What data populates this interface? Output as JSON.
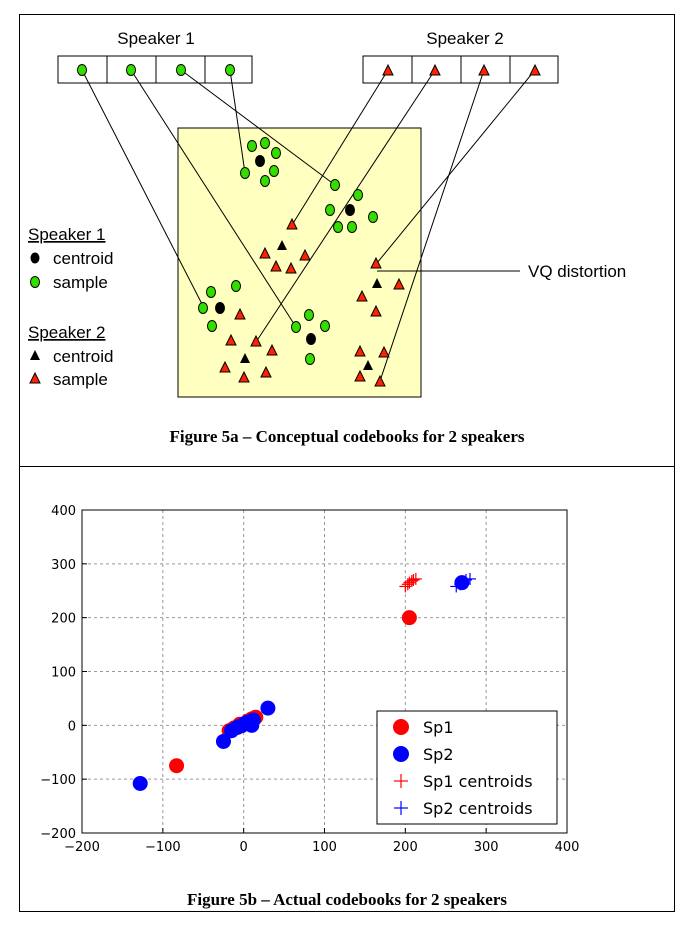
{
  "figure_a": {
    "codebook_1_title": "Speaker 1",
    "codebook_2_title": "Speaker 2",
    "legend": {
      "speaker1_title": "Speaker 1",
      "speaker1_centroid": "centroid",
      "speaker1_sample": "sample",
      "speaker2_title": "Speaker 2",
      "speaker2_centroid": "centroid",
      "speaker2_sample": "sample"
    },
    "annotation": "VQ distortion",
    "caption": "Figure 5a – Conceptual codebooks for 2 speakers",
    "colors": {
      "panel": "#ffffc0",
      "sample1": "#33dd00",
      "sample2": "#ff2200",
      "centroid": "#000000"
    }
  },
  "figure_b": {
    "caption": "Figure 5b – Actual codebooks for 2 speakers"
  },
  "chart_data": {
    "type": "scatter",
    "title": "",
    "xlabel": "",
    "ylabel": "",
    "xlim": [
      -200,
      400
    ],
    "ylim": [
      -200,
      400
    ],
    "xticks": [
      "−200",
      "−100",
      "0",
      "100",
      "200",
      "300",
      "400"
    ],
    "yticks": [
      "400",
      "300",
      "200",
      "100",
      "0",
      "−100",
      "−200"
    ],
    "grid": true,
    "legend_position": "bottom-right",
    "series": [
      {
        "name": "Sp1",
        "marker": "circle",
        "color": "#ff0000",
        "points": [
          [
            205,
            200
          ],
          [
            -83,
            -75
          ],
          [
            10,
            12
          ],
          [
            5,
            8
          ],
          [
            -5,
            2
          ],
          [
            -12,
            -5
          ],
          [
            -18,
            -10
          ],
          [
            15,
            15
          ],
          [
            -2,
            0
          ]
        ]
      },
      {
        "name": "Sp2",
        "marker": "circle",
        "color": "#0000ff",
        "points": [
          [
            270,
            265
          ],
          [
            -128,
            -108
          ],
          [
            -25,
            -30
          ],
          [
            30,
            32
          ],
          [
            -15,
            -10
          ],
          [
            -8,
            -4
          ],
          [
            0,
            2
          ],
          [
            5,
            6
          ],
          [
            10,
            0
          ],
          [
            -3,
            -1
          ],
          [
            12,
            10
          ]
        ]
      },
      {
        "name": "Sp1 centroids",
        "marker": "plus",
        "color": "#ff0000",
        "points": [
          [
            200,
            258
          ],
          [
            205,
            265
          ],
          [
            210,
            270
          ],
          [
            203,
            262
          ],
          [
            208,
            268
          ],
          [
            213,
            272
          ]
        ]
      },
      {
        "name": "Sp2 centroids",
        "marker": "plus",
        "color": "#0000ff",
        "points": [
          [
            263,
            258
          ],
          [
            270,
            265
          ],
          [
            275,
            270
          ],
          [
            280,
            272
          ],
          [
            268,
            262
          ]
        ]
      }
    ]
  }
}
